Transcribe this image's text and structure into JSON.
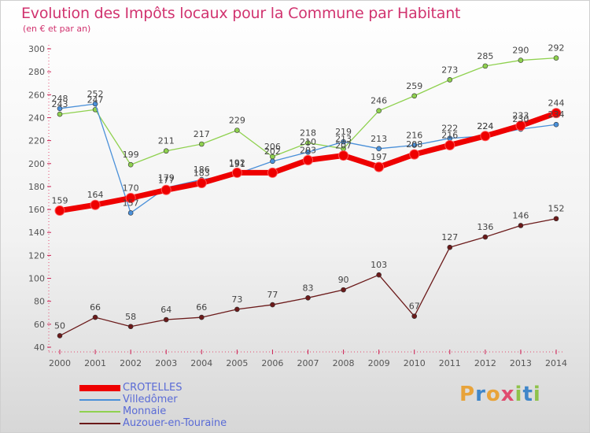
{
  "title": "Evolution des Impôts locaux pour la Commune par Habitant",
  "subtitle": "(en € et par an)",
  "brand": "Proxiti",
  "chart_data": {
    "type": "line",
    "x": [
      "2000",
      "2001",
      "2002",
      "2003",
      "2004",
      "2005",
      "2006",
      "2007",
      "2008",
      "2009",
      "2010",
      "2011",
      "2012",
      "2013",
      "2014"
    ],
    "ylim": [
      40,
      300
    ],
    "yticks": [
      40,
      60,
      80,
      100,
      120,
      140,
      160,
      180,
      200,
      220,
      240,
      260,
      280,
      300
    ],
    "grid": false,
    "legend_position": "bottom-left",
    "series": [
      {
        "name": "CROTELLES",
        "color": "#ee0000",
        "values": [
          159,
          164,
          170,
          177,
          183,
          192,
          192,
          203,
          207,
          197,
          208,
          216,
          224,
          233,
          244
        ],
        "labels": [
          159,
          164,
          170,
          177,
          183,
          192,
          null,
          203,
          207,
          197,
          208,
          216,
          224,
          233,
          244
        ]
      },
      {
        "name": "Villedômer",
        "color": "#4a90d9",
        "values": [
          248,
          252,
          157,
          179,
          186,
          191,
          202,
          210,
          219,
          213,
          216,
          222,
          224,
          230,
          234
        ],
        "labels": [
          248,
          252,
          157,
          179,
          186,
          191,
          202,
          210,
          219,
          213,
          216,
          222,
          224,
          230,
          234
        ]
      },
      {
        "name": "Monnaie",
        "color": "#8fd14f",
        "values": [
          243,
          247,
          199,
          211,
          217,
          229,
          206,
          218,
          213,
          246,
          259,
          273,
          285,
          290,
          292
        ],
        "labels": [
          243,
          247,
          199,
          211,
          217,
          229,
          206,
          218,
          213,
          246,
          259,
          273,
          285,
          290,
          292
        ]
      },
      {
        "name": "Auzouer-en-Touraine",
        "color": "#6b1a1a",
        "values": [
          50,
          66,
          58,
          64,
          66,
          73,
          77,
          83,
          90,
          103,
          67,
          127,
          136,
          146,
          152
        ],
        "labels": [
          50,
          66,
          58,
          64,
          66,
          73,
          77,
          83,
          90,
          103,
          67,
          127,
          136,
          146,
          152
        ]
      }
    ]
  }
}
